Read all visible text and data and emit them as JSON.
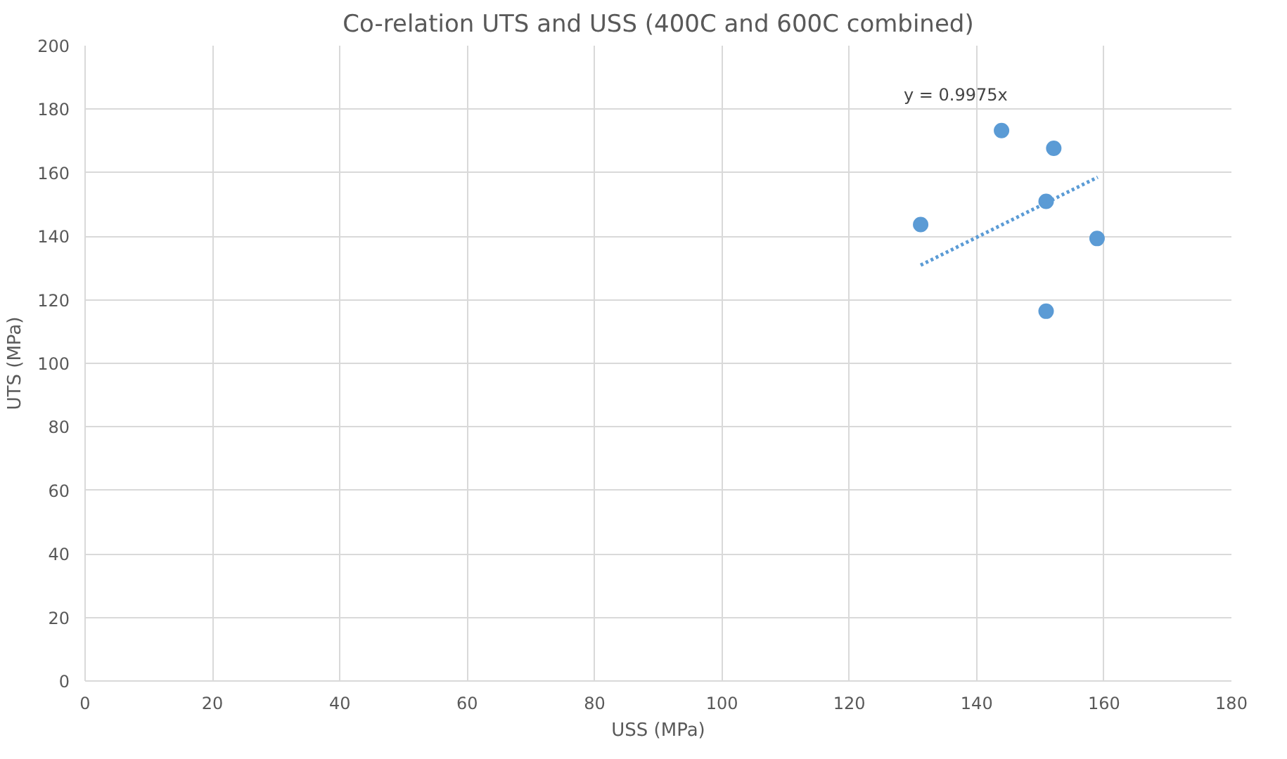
{
  "chart_data": {
    "type": "scatter",
    "title": "Co-relation UTS and USS (400C and 600C combined)",
    "xlabel": "USS (MPa)",
    "ylabel": "UTS (MPa)",
    "xlim": [
      0,
      180
    ],
    "xticks": [
      0,
      20,
      40,
      60,
      80,
      100,
      120,
      140,
      160,
      180
    ],
    "ylim": [
      0,
      200
    ],
    "yticks": [
      0,
      20,
      40,
      60,
      80,
      100,
      120,
      140,
      160,
      180,
      200
    ],
    "grid": true,
    "marker": "circle",
    "series": [
      {
        "color": "#5b9bd5",
        "x": [
          131.2,
          143.9,
          152.1,
          150.9,
          158.9,
          150.9
        ],
        "values": [
          143.7,
          173.3,
          167.7,
          151.0,
          139.3,
          116.4
        ]
      },
      {
        "type": "line",
        "color": "#5b9bd5",
        "line_style": "dotted",
        "marker": "none",
        "x": [
          131.2,
          159.0
        ],
        "values": [
          130.9,
          158.6
        ]
      }
    ],
    "annotations": [
      "y = 0.9975x"
    ]
  }
}
